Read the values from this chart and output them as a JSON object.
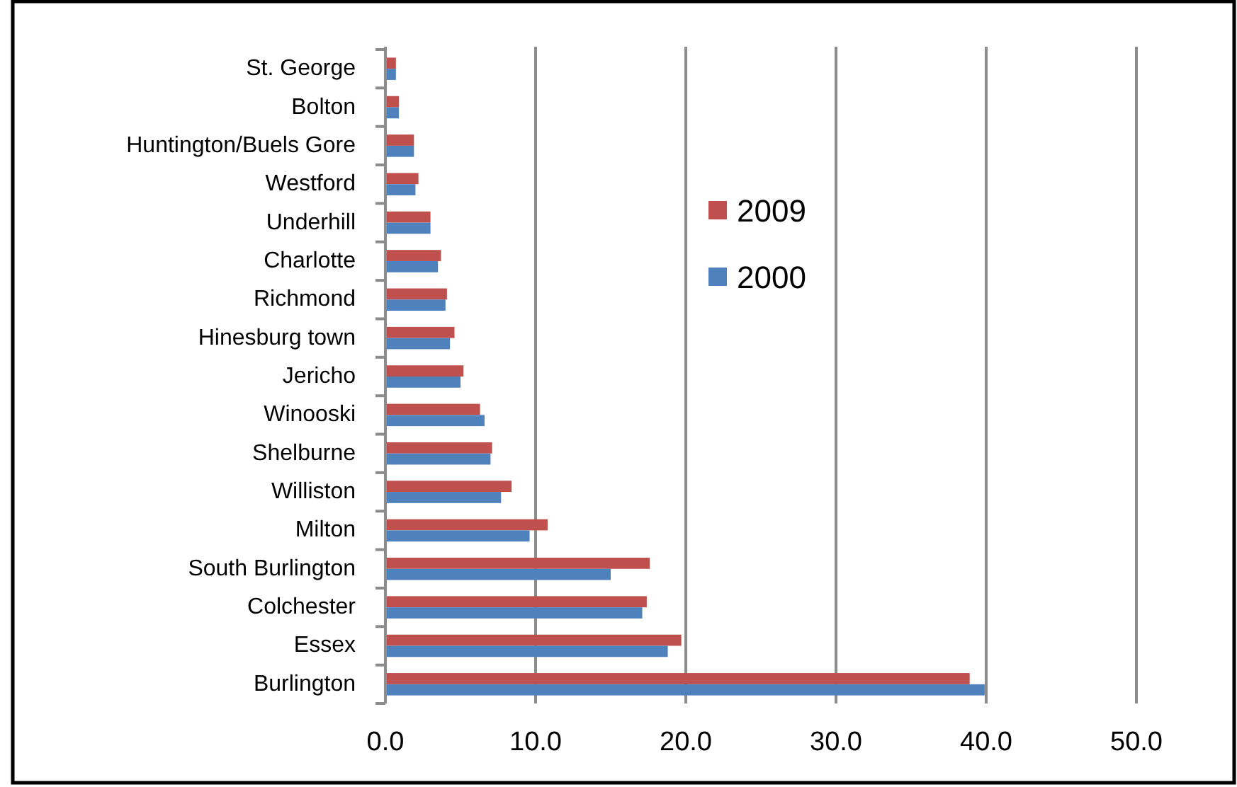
{
  "chart_data": {
    "type": "bar",
    "orientation": "horizontal",
    "categories": [
      "St. George",
      "Bolton",
      "Huntington/Buels Gore",
      "Westford",
      "Underhill",
      "Charlotte",
      "Richmond",
      "Hinesburg town",
      "Jericho",
      "Winooski",
      "Shelburne",
      "Williston",
      "Milton",
      "South Burlington",
      "Colchester",
      "Essex",
      "Burlington"
    ],
    "series": [
      {
        "name": "2009",
        "color": "#c0504d",
        "values": [
          0.7,
          0.9,
          1.9,
          2.2,
          3.0,
          3.7,
          4.1,
          4.6,
          5.2,
          6.3,
          7.1,
          8.4,
          10.8,
          17.6,
          17.4,
          19.7,
          38.9
        ]
      },
      {
        "name": "2000",
        "color": "#4f81bd",
        "values": [
          0.7,
          0.9,
          1.9,
          2.0,
          3.0,
          3.5,
          4.0,
          4.3,
          5.0,
          6.6,
          7.0,
          7.7,
          9.6,
          15.0,
          17.1,
          18.8,
          39.9
        ]
      }
    ],
    "xlim": [
      0,
      50
    ],
    "xticks": [
      {
        "value": 0,
        "label": "0.0"
      },
      {
        "value": 10,
        "label": "10.0"
      },
      {
        "value": 20,
        "label": "20.0"
      },
      {
        "value": 30,
        "label": "30.0"
      },
      {
        "value": 40,
        "label": "40.0"
      },
      {
        "value": 50,
        "label": "50.0"
      }
    ],
    "grid": "x",
    "legend": "right"
  }
}
